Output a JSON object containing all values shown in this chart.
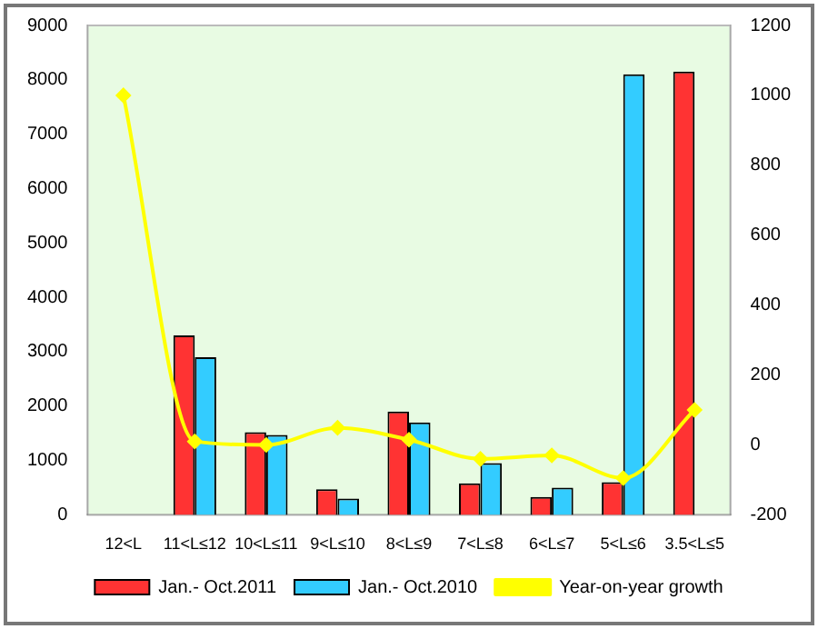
{
  "chart_data": {
    "type": "bar",
    "categories": [
      "12<L",
      "11<L≤12",
      "10<L≤11",
      "9<L≤10",
      "8<L≤9",
      "7<L≤8",
      "6<L≤7",
      "5<L≤6",
      "3.5<L≤5"
    ],
    "series": [
      {
        "name": "Jan.- Oct.2011",
        "color": "#ff3333",
        "values": [
          null,
          3300,
          1520,
          470,
          1900,
          580,
          330,
          600,
          8150
        ]
      },
      {
        "name": "Jan.- Oct.2010",
        "color": "#33ccff",
        "values": [
          null,
          2900,
          1470,
          300,
          1700,
          950,
          500,
          8100,
          null
        ]
      },
      {
        "name": "Year-on-year growth",
        "type": "line",
        "axis": "y2",
        "color": "#ffff00",
        "marker": "diamond",
        "values": [
          1000,
          10,
          0,
          49,
          15,
          -40,
          -30,
          -95,
          100
        ]
      }
    ],
    "ylim": [
      0,
      9000
    ],
    "yticks": [
      0,
      1000,
      2000,
      3000,
      4000,
      5000,
      6000,
      7000,
      8000,
      9000
    ],
    "y2lim": [
      -200,
      1200
    ],
    "y2ticks": [
      -200,
      0,
      200,
      400,
      600,
      800,
      1000,
      1200
    ],
    "grid": false,
    "legend": "bottom"
  }
}
